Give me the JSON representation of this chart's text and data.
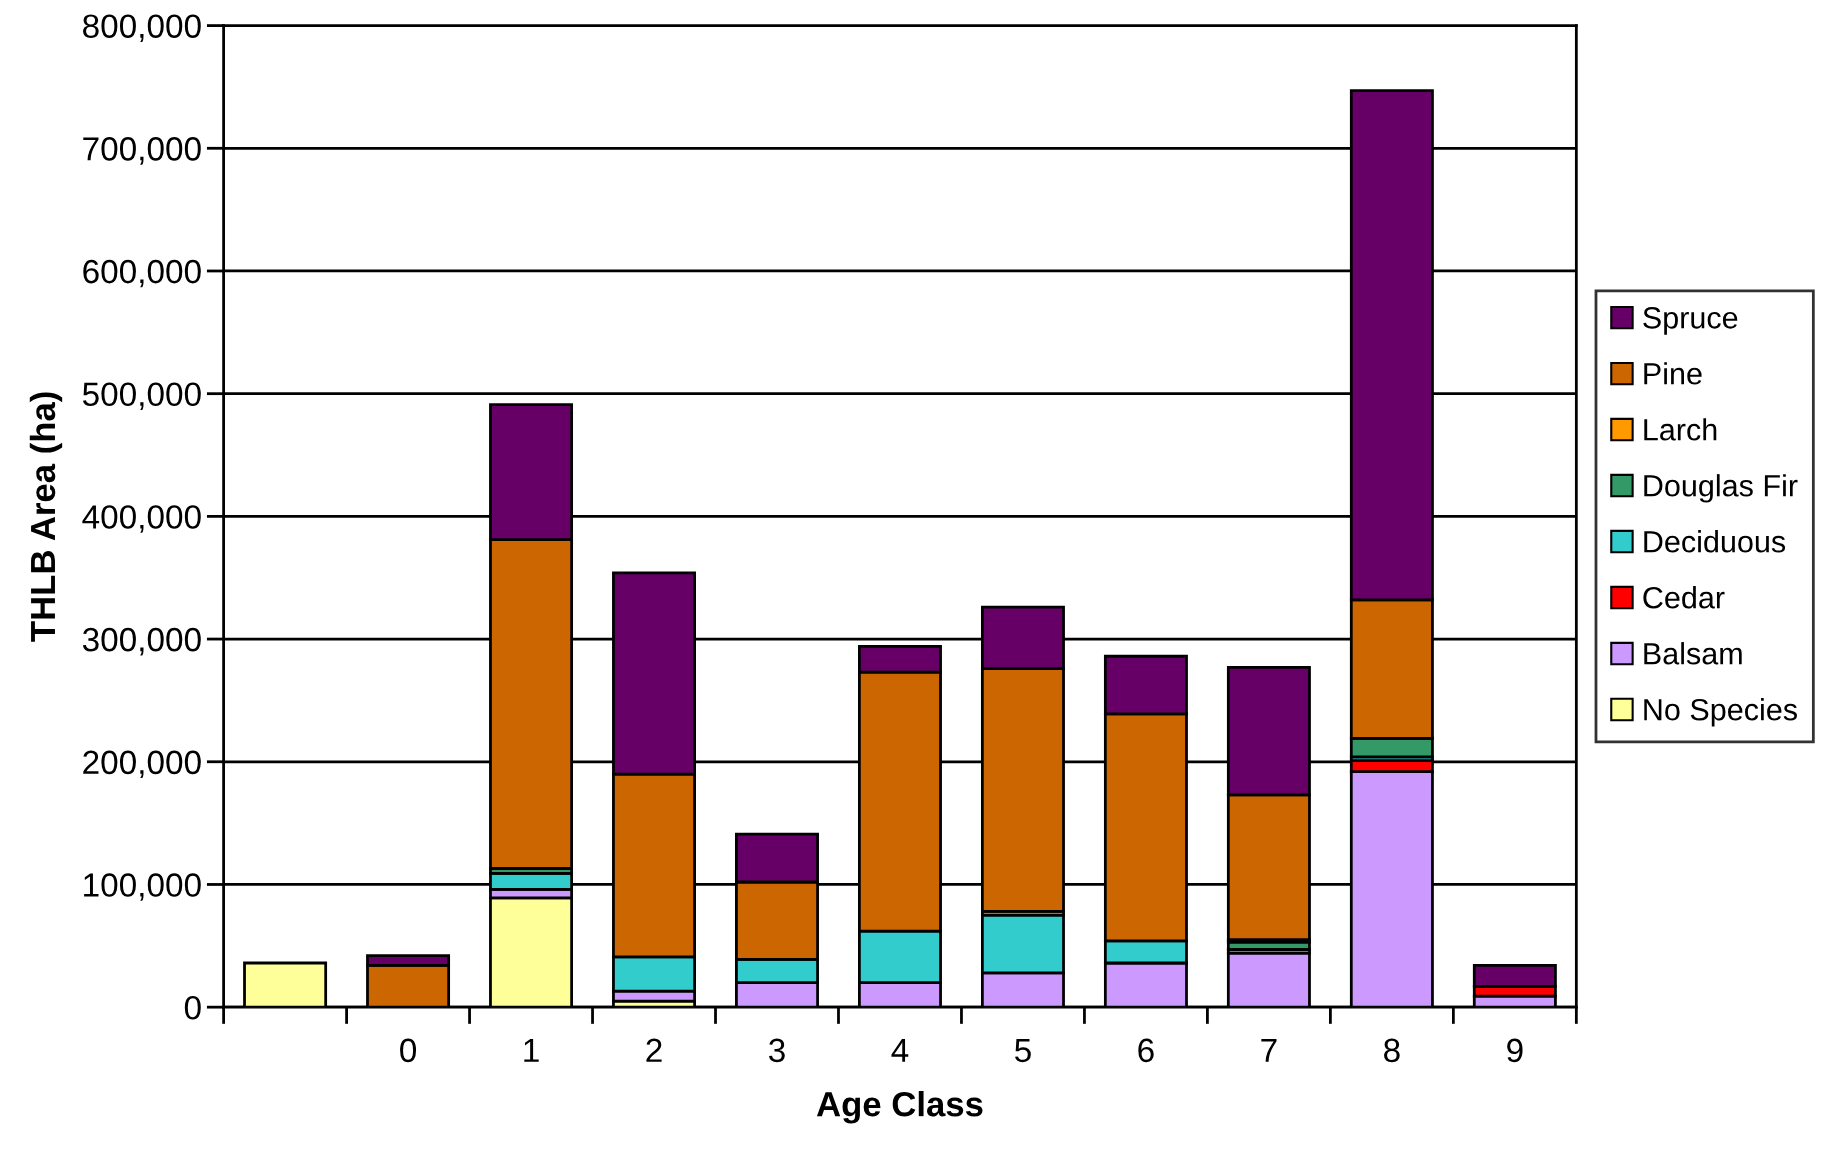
{
  "chart_data": {
    "type": "bar",
    "stacked": true,
    "xlabel": "Age Class",
    "ylabel": "THLB Area (ha)",
    "categories": [
      null,
      "0",
      "1",
      "2",
      "3",
      "4",
      "5",
      "6",
      "7",
      "8",
      "9"
    ],
    "series": [
      {
        "name": "No Species",
        "color": "#ffff99",
        "values": [
          36000,
          0,
          89000,
          5000,
          0,
          0,
          0,
          0,
          0,
          0,
          0
        ]
      },
      {
        "name": "Balsam",
        "color": "#cc99ff",
        "values": [
          0,
          null,
          7000,
          8000,
          20000,
          20000,
          28000,
          36000,
          44000,
          192000,
          9000
        ]
      },
      {
        "name": "Cedar",
        "color": "#ff0000",
        "values": [
          0,
          0,
          0,
          0,
          0,
          0,
          0,
          0,
          0,
          9000,
          8000
        ]
      },
      {
        "name": "Deciduous",
        "color": "#33cccc",
        "values": [
          0,
          0,
          13000,
          28000,
          19000,
          42000,
          47000,
          18000,
          3000,
          3000,
          0
        ]
      },
      {
        "name": "Douglas Fir",
        "color": "#339966",
        "values": [
          0,
          0,
          4000,
          0,
          0,
          0,
          0,
          0,
          6000,
          15000,
          0
        ]
      },
      {
        "name": "Larch",
        "color": "#ff9900",
        "values": [
          0,
          0,
          null,
          null,
          0,
          0,
          3000,
          null,
          2000,
          0,
          0
        ]
      },
      {
        "name": "Pine",
        "color": "#cc6600",
        "values": [
          0,
          34000,
          268000,
          149000,
          63000,
          211000,
          198000,
          185000,
          118000,
          113000,
          0
        ]
      },
      {
        "name": "Spruce",
        "color": "#660066",
        "values": [
          0,
          8000,
          110000,
          164000,
          39000,
          21000,
          50000,
          47000,
          104000,
          415000,
          17000
        ]
      }
    ],
    "ylim": [
      0,
      800000
    ],
    "yticks": [
      {
        "value": 0,
        "label": "0"
      },
      {
        "value": 100000,
        "label": "100,000"
      },
      {
        "value": 200000,
        "label": "200,000"
      },
      {
        "value": 300000,
        "label": "300,000"
      },
      {
        "value": 400000,
        "label": "400,000"
      },
      {
        "value": 500000,
        "label": "500,000"
      },
      {
        "value": 600000,
        "label": "600,000"
      },
      {
        "value": 700000,
        "label": "700,000"
      },
      {
        "value": 800000,
        "label": "800,000"
      }
    ],
    "grid": "y",
    "legend": "right"
  }
}
